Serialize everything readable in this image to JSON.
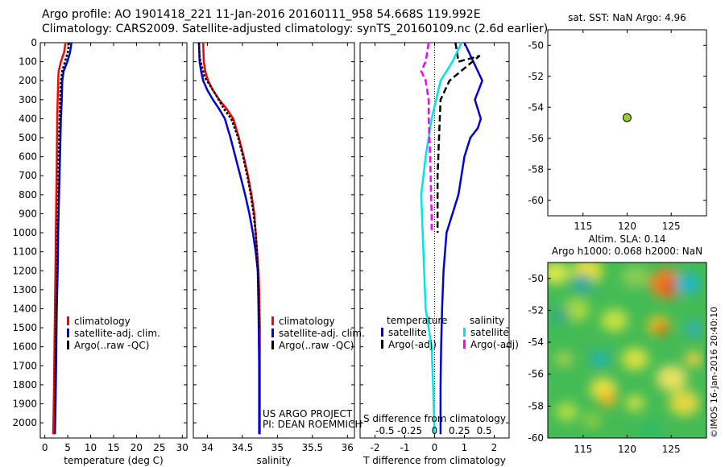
{
  "header": {
    "line1": "Argo profile: AO 1901418_221 11-Jan-2016 20160111_958 54.668S 119.992E",
    "line2": "Climatology: CARS2009. Satellite-adjusted climatology: synTS_20160109.nc (2.6d earlier)"
  },
  "colors": {
    "climatology": "#ff0000",
    "satellite": "#0000dd",
    "argo": "#000000",
    "cyan": "#00e5e5",
    "magenta": "#ff00ff",
    "marker": "#99cc33"
  },
  "chart_data": [
    {
      "type": "line",
      "panel": "temperature",
      "xlabel": "temperature (deg C)",
      "ylabel": "",
      "xlim": [
        -1,
        31
      ],
      "ylim": [
        2080,
        0
      ],
      "xticks": [
        0,
        5,
        10,
        15,
        20,
        25,
        30
      ],
      "xtick_labels": [
        "0",
        "5",
        "10",
        "15",
        "20",
        "25",
        "30"
      ],
      "yticks": [
        0,
        100,
        200,
        300,
        400,
        500,
        600,
        700,
        800,
        900,
        1000,
        1100,
        1200,
        1300,
        1400,
        1500,
        1600,
        1700,
        1800,
        1900,
        2000
      ],
      "ytick_labels": [
        "0",
        "100",
        "200",
        "300",
        "400",
        "500",
        "600",
        "700",
        "800",
        "900",
        "1000",
        "1100",
        "1200",
        "1300",
        "1400",
        "1500",
        "1600",
        "1700",
        "1800",
        "1900",
        "2000"
      ],
      "legend": [
        "climatology",
        "satellite-adj. clim.",
        "Argo(..raw -QC)"
      ],
      "series": [
        {
          "name": "climatology",
          "color": "#ff0000",
          "dash": "",
          "x": [
            4.5,
            4.2,
            3.5,
            3.0,
            2.9,
            2.8,
            2.7,
            2.6,
            2.5,
            2.4,
            2.3,
            2.2,
            2.1,
            2.0,
            1.9,
            1.8
          ],
          "y": [
            0,
            50,
            100,
            150,
            200,
            300,
            400,
            600,
            800,
            1000,
            1200,
            1400,
            1600,
            1800,
            1950,
            2060
          ]
        },
        {
          "name": "satellite-adj. clim.",
          "color": "#0000dd",
          "dash": "",
          "x": [
            5.8,
            5.5,
            4.9,
            4.1,
            3.8,
            3.7,
            3.5,
            3.3,
            3.1,
            2.9,
            2.8,
            2.6,
            2.5,
            2.4,
            2.3,
            2.2
          ],
          "y": [
            0,
            50,
            100,
            150,
            200,
            300,
            400,
            600,
            800,
            1000,
            1200,
            1400,
            1600,
            1800,
            1950,
            2060
          ]
        },
        {
          "name": "Argo(..raw -QC)",
          "color": "#000000",
          "dash": "3 2",
          "x": [
            5.3,
            5.0,
            4.4,
            3.8,
            3.5,
            3.3,
            3.2,
            3.0,
            2.9,
            2.7,
            2.6,
            2.5,
            2.4,
            2.3,
            2.2
          ],
          "y": [
            0,
            50,
            100,
            150,
            200,
            300,
            400,
            600,
            800,
            1000,
            1200,
            1400,
            1600,
            1800,
            1950
          ]
        }
      ]
    },
    {
      "type": "line",
      "panel": "salinity",
      "xlabel": "salinity",
      "ylabel": "",
      "xlim": [
        33.8,
        36.1
      ],
      "ylim": [
        2080,
        0
      ],
      "xticks": [
        34,
        34.5,
        35,
        35.5,
        36
      ],
      "xtick_labels": [
        "34",
        "34.5",
        "35",
        "35.5",
        "36"
      ],
      "legend": [
        "climatology",
        "satellite-adj. clim.",
        "Argo(..raw -QC)"
      ],
      "annotation": [
        "US ARGO PROJECT",
        "PI: DEAN ROEMMICH"
      ],
      "series": [
        {
          "name": "climatology",
          "color": "#ff0000",
          "dash": "",
          "x": [
            33.94,
            33.95,
            33.97,
            34.01,
            34.08,
            34.17,
            34.28,
            34.37,
            34.45,
            34.52,
            34.58,
            34.63,
            34.67,
            34.69,
            34.71,
            34.73,
            34.74,
            34.75,
            34.75,
            34.75
          ],
          "y": [
            0,
            100,
            150,
            200,
            250,
            300,
            350,
            400,
            500,
            600,
            700,
            800,
            900,
            1000,
            1100,
            1200,
            1300,
            1500,
            1800,
            2060
          ]
        },
        {
          "name": "satellite-adj. clim.",
          "color": "#0000dd",
          "dash": "",
          "x": [
            33.88,
            33.89,
            33.91,
            33.94,
            34.0,
            34.08,
            34.17,
            34.25,
            34.33,
            34.4,
            34.47,
            34.54,
            34.6,
            34.65,
            34.69,
            34.72,
            34.73,
            34.74,
            34.74
          ],
          "y": [
            0,
            100,
            150,
            200,
            250,
            300,
            350,
            400,
            500,
            600,
            700,
            800,
            900,
            1000,
            1100,
            1200,
            1400,
            1700,
            2060
          ]
        },
        {
          "name": "Argo(..raw -QC)",
          "color": "#000000",
          "dash": "3 2",
          "x": [
            33.88,
            33.89,
            33.92,
            33.96,
            34.03,
            34.13,
            34.24,
            34.34,
            34.44,
            34.51,
            34.57,
            34.62,
            34.66,
            34.69,
            34.71,
            34.73,
            34.74
          ],
          "y": [
            0,
            80,
            120,
            180,
            220,
            280,
            350,
            400,
            500,
            600,
            700,
            800,
            900,
            1000,
            1100,
            1300,
            1500
          ]
        }
      ]
    },
    {
      "type": "line",
      "panel": "differences",
      "xlabel": "T difference from climatology",
      "xlabel_top": "S difference from climatology",
      "xlim": [
        -2.5,
        2.5
      ],
      "ylim": [
        2080,
        0
      ],
      "xticks": [
        -2,
        -1,
        0,
        1,
        2
      ],
      "xtick_labels": [
        "-2",
        "-1",
        "0",
        "1",
        "2"
      ],
      "xticks_salinity": [
        -0.5,
        -0.25,
        0,
        0.25,
        0.5
      ],
      "xtick_labels_salinity": [
        "-0.5",
        "-0.25",
        "0",
        "0.25",
        "0.5"
      ],
      "legend_temperature_title": "temperature",
      "legend_salinity_title": "salinity",
      "legend_temperature": [
        "satellite",
        "Argo(-adj)"
      ],
      "legend_salinity": [
        "satellite",
        "Argo(-adj)"
      ],
      "series": [
        {
          "name": "satellite",
          "color": "#0000dd",
          "dash": "",
          "quantity": "temperature",
          "x": [
            1.0,
            1.3,
            1.6,
            1.35,
            1.55,
            1.45,
            1.2,
            1.0,
            0.8,
            0.6,
            0.4,
            0.3,
            0.25,
            0.22,
            0.2,
            0.2,
            0.2
          ],
          "y": [
            0,
            100,
            200,
            300,
            400,
            450,
            500,
            600,
            800,
            900,
            1000,
            1200,
            1400,
            1600,
            1800,
            1950,
            2060
          ]
        },
        {
          "name": "Argo(-adj)",
          "color": "#000000",
          "dash": "8 4",
          "quantity": "temperature",
          "x": [
            0.7,
            0.8,
            1.5,
            0.5,
            0.2,
            0.15,
            0.1,
            0.1,
            0.1
          ],
          "y": [
            0,
            100,
            70,
            200,
            300,
            500,
            700,
            900,
            1000
          ]
        },
        {
          "name": "satellite",
          "color": "#00e5e5",
          "dash": "",
          "quantity": "salinity",
          "x": [
            0.9,
            0.6,
            0.2,
            0.05,
            -0.1,
            -0.3,
            -0.45,
            -0.4,
            -0.35,
            -0.3,
            -0.1,
            -0.05,
            0.0
          ],
          "y": [
            0,
            100,
            200,
            300,
            400,
            600,
            800,
            1000,
            1200,
            1400,
            1600,
            1800,
            2060
          ]
        },
        {
          "name": "Argo(-adj)",
          "color": "#ff00ff",
          "dash": "8 4",
          "quantity": "salinity",
          "x": [
            -0.2,
            -0.3,
            -0.45,
            -0.3,
            -0.2,
            -0.2,
            -0.15,
            -0.12,
            -0.1,
            -0.1
          ],
          "y": [
            0,
            100,
            150,
            200,
            300,
            400,
            600,
            800,
            900,
            1000
          ]
        }
      ]
    },
    {
      "type": "scatter",
      "panel": "location-map",
      "title": "sat. SST: NaN Argo: 4.96",
      "xlim": [
        111,
        129
      ],
      "ylim": [
        -61,
        -49
      ],
      "xticks": [
        115,
        120,
        125
      ],
      "xtick_labels": [
        "115",
        "120",
        "125"
      ],
      "yticks": [
        -50,
        -52,
        -54,
        -56,
        -58,
        -60
      ],
      "ytick_labels": [
        "-50",
        "-52",
        "-54",
        "-56",
        "-58",
        "-60"
      ],
      "points": [
        {
          "x": 119.992,
          "y": -54.668
        }
      ]
    },
    {
      "type": "heatmap",
      "panel": "altimetry-map",
      "title_line1": "Altim. SLA: 0.14",
      "title_line2": "Argo h1000: 0.068 h2000: NaN",
      "xlim": [
        111,
        129
      ],
      "ylim": [
        -60,
        -49
      ],
      "xticks": [
        115,
        120,
        125
      ],
      "xtick_labels": [
        "115",
        "120",
        "125"
      ],
      "yticks": [
        -50,
        -52,
        -54,
        -56,
        -58,
        -60
      ],
      "ytick_labels": [
        "-50",
        "-52",
        "-54",
        "-56",
        "-58",
        "-60"
      ]
    }
  ],
  "credit": "©IMOS 16-Jan-2016 20:40:10"
}
